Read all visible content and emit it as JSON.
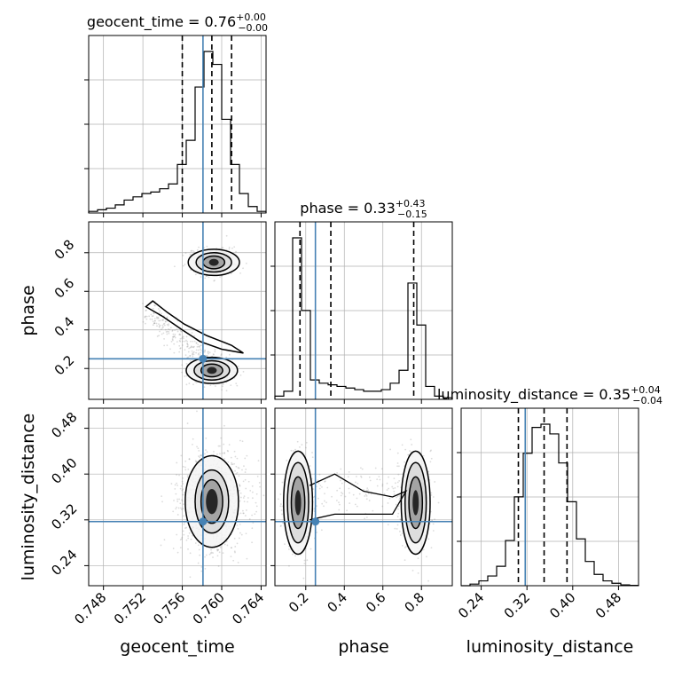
{
  "chart_data": {
    "type": "corner",
    "parameters": [
      "geocent_time",
      "phase",
      "luminosity_distance"
    ],
    "axis_labels": {
      "x": [
        "geocent_time",
        "phase",
        "luminosity_distance"
      ],
      "y": [
        "phase",
        "luminosity_distance"
      ]
    },
    "titles": [
      {
        "name": "geocent_time",
        "median": "0.76",
        "plus": "+0.00",
        "minus": "−0.00"
      },
      {
        "name": "phase",
        "median": "0.33",
        "plus": "+0.43",
        "minus": "−0.15"
      },
      {
        "name": "luminosity_distance",
        "median": "0.35",
        "plus": "+0.04",
        "minus": "−0.04"
      }
    ],
    "ranges": {
      "geocent_time": [
        0.7465,
        0.7645
      ],
      "phase": [
        0.04,
        0.96
      ],
      "luminosity_distance": [
        0.205,
        0.515
      ]
    },
    "ticks": {
      "geocent_time": {
        "values": [
          0.748,
          0.752,
          0.756,
          0.76,
          0.764
        ],
        "labels": [
          "0.748",
          "0.752",
          "0.756",
          "0.760",
          "0.764"
        ]
      },
      "phase": {
        "values": [
          0.2,
          0.4,
          0.6,
          0.8
        ],
        "labels": [
          "0.2",
          "0.4",
          "0.6",
          "0.8"
        ]
      },
      "luminosity_distance": {
        "values": [
          0.24,
          0.32,
          0.4,
          0.48
        ],
        "labels": [
          "0.24",
          "0.32",
          "0.40",
          "0.48"
        ]
      }
    },
    "truths": {
      "geocent_time": 0.7581,
      "phase": 0.25,
      "luminosity_distance": 0.317
    },
    "quantiles": {
      "geocent_time": [
        0.756,
        0.759,
        0.761
      ],
      "phase": [
        0.17,
        0.33,
        0.76
      ],
      "luminosity_distance": [
        0.305,
        0.35,
        0.39
      ]
    },
    "histograms": {
      "geocent_time": {
        "edges_start": 0.7465,
        "bin_width": 0.0009,
        "counts": [
          0.01,
          0.02,
          0.03,
          0.05,
          0.08,
          0.1,
          0.12,
          0.13,
          0.15,
          0.18,
          0.3,
          0.45,
          0.78,
          1.0,
          0.92,
          0.58,
          0.3,
          0.12,
          0.04,
          0.01
        ]
      },
      "phase": {
        "edges_start": 0.04,
        "bin_width": 0.046,
        "counts": [
          0.02,
          0.05,
          1.0,
          0.55,
          0.12,
          0.1,
          0.09,
          0.08,
          0.07,
          0.06,
          0.05,
          0.05,
          0.06,
          0.1,
          0.18,
          0.72,
          0.46,
          0.08,
          0.02,
          0.01
        ]
      },
      "luminosity_distance": {
        "edges_start": 0.205,
        "bin_width": 0.0155,
        "counts": [
          0.0,
          0.01,
          0.03,
          0.06,
          0.12,
          0.28,
          0.55,
          0.82,
          0.98,
          1.0,
          0.94,
          0.76,
          0.52,
          0.29,
          0.15,
          0.07,
          0.03,
          0.015,
          0.005,
          0.002
        ]
      }
    },
    "colors": {
      "truth": "#4682b4",
      "hist": "#000000",
      "grid": "#b0b0b0",
      "sample": "#808080"
    }
  }
}
